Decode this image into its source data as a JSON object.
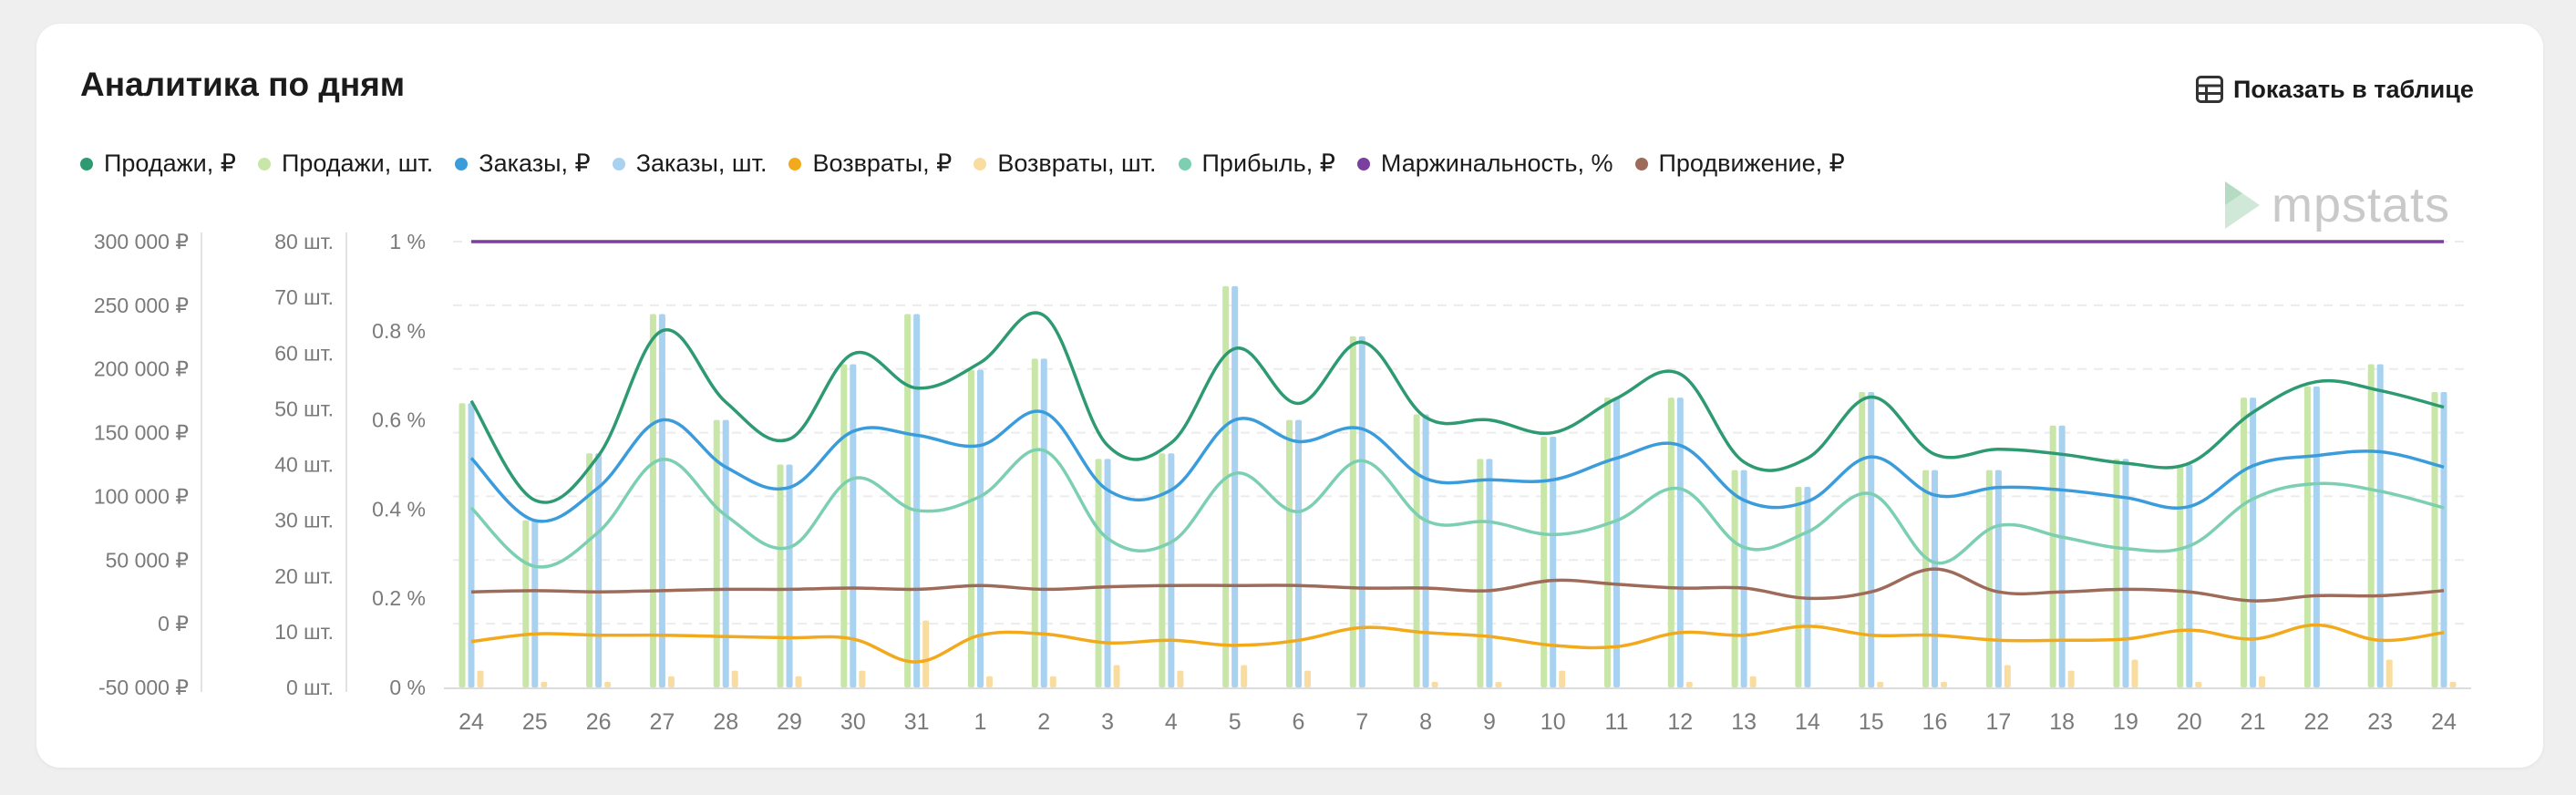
{
  "header": {
    "title": "Аналитика по дням",
    "table_button_label": "Показать в таблице",
    "table_icon": "table-icon"
  },
  "logo": {
    "text": "mpstats",
    "icon": "play-triangle-icon"
  },
  "colors": {
    "sales_rub": "#2e9a72",
    "sales_pcs": "#c8e6a8",
    "orders_rub": "#3b9cdb",
    "orders_pcs": "#a8d2f0",
    "returns_rub": "#f2a91c",
    "returns_pcs": "#f9dca0",
    "profit_rub": "#7ccfb0",
    "margin_pct": "#7b3fa0",
    "promo_rub": "#9e6b5a"
  },
  "chart_data": {
    "type": "bar",
    "x": [
      "24",
      "25",
      "26",
      "27",
      "28",
      "29",
      "30",
      "31",
      "1",
      "2",
      "3",
      "4",
      "5",
      "6",
      "7",
      "8",
      "9",
      "10",
      "11",
      "12",
      "13",
      "14",
      "15",
      "16",
      "17",
      "18",
      "19",
      "20",
      "21",
      "22",
      "23",
      "24"
    ],
    "axes": {
      "rub": {
        "ticks": [
          "300 000 ₽",
          "250 000 ₽",
          "200 000 ₽",
          "150 000 ₽",
          "100 000 ₽",
          "50 000 ₽",
          "0 ₽",
          "-50 000 ₽"
        ],
        "range": [
          -50000,
          300000
        ]
      },
      "pcs": {
        "ticks": [
          "80 шт.",
          "70 шт.",
          "60 шт.",
          "50 шт.",
          "40 шт.",
          "30 шт.",
          "20 шт.",
          "10 шт.",
          "0 шт."
        ],
        "range": [
          0,
          80
        ]
      },
      "pct": {
        "ticks": [
          "1 %",
          "0.8 %",
          "0.6 %",
          "0.4 %",
          "0.2 %",
          "0 %"
        ],
        "range": [
          0,
          1
        ]
      }
    },
    "grid": true,
    "legend_position": "top-left",
    "series": [
      {
        "name": "Продажи, ₽",
        "key": "sales_rub",
        "kind": "line",
        "axis": "rub",
        "values": [
          175000,
          97000,
          132000,
          230000,
          174000,
          145000,
          212000,
          185000,
          205000,
          242000,
          140000,
          142000,
          216000,
          173000,
          221000,
          162000,
          160000,
          150000,
          177000,
          196000,
          127000,
          130000,
          178000,
          133000,
          137000,
          133000,
          126000,
          126000,
          166000,
          190000,
          183000,
          170000
        ]
      },
      {
        "name": "Продажи, шт.",
        "key": "sales_pcs",
        "kind": "bar",
        "axis": "pcs",
        "values": [
          51,
          30,
          42,
          67,
          48,
          40,
          58,
          67,
          57,
          59,
          41,
          42,
          72,
          48,
          63,
          49,
          41,
          45,
          52,
          52,
          39,
          36,
          53,
          39,
          39,
          47,
          41,
          40,
          52,
          54,
          58,
          53
        ]
      },
      {
        "name": "Заказы, ₽",
        "key": "orders_rub",
        "kind": "line",
        "axis": "rub",
        "values": [
          130000,
          81000,
          107000,
          160000,
          123000,
          107000,
          151000,
          148000,
          140000,
          166000,
          105000,
          105000,
          160000,
          143000,
          153000,
          114000,
          113000,
          113000,
          130000,
          140000,
          97000,
          96000,
          131000,
          101000,
          107000,
          105000,
          99000,
          92000,
          124000,
          132000,
          135000,
          123000
        ]
      },
      {
        "name": "Заказы, шт.",
        "key": "orders_pcs",
        "kind": "bar",
        "axis": "pcs",
        "values": [
          51,
          30,
          42,
          67,
          48,
          40,
          58,
          67,
          57,
          59,
          41,
          42,
          72,
          48,
          63,
          49,
          41,
          45,
          52,
          52,
          39,
          36,
          53,
          39,
          39,
          47,
          41,
          40,
          52,
          54,
          58,
          53
        ]
      },
      {
        "name": "Возвраты, ₽",
        "key": "returns_rub",
        "kind": "line",
        "axis": "rub",
        "values": [
          -14000,
          -8000,
          -9000,
          -9000,
          -10000,
          -11000,
          -12000,
          -30000,
          -9000,
          -8000,
          -15000,
          -13000,
          -17000,
          -13000,
          -3000,
          -7000,
          -10000,
          -17000,
          -18000,
          -7000,
          -9000,
          -2000,
          -9000,
          -9000,
          -13000,
          -13000,
          -12000,
          -5000,
          -12000,
          -1000,
          -13000,
          -7000
        ]
      },
      {
        "name": "Возвраты, шт.",
        "key": "returns_pcs",
        "kind": "bar",
        "axis": "pcs",
        "values": [
          3,
          1,
          1,
          2,
          3,
          2,
          3,
          12,
          2,
          2,
          4,
          3,
          4,
          3,
          0,
          1,
          1,
          3,
          0,
          1,
          2,
          0,
          1,
          1,
          4,
          3,
          5,
          1,
          2,
          0,
          5,
          1
        ]
      },
      {
        "name": "Прибыль, ₽",
        "key": "profit_rub",
        "kind": "line",
        "axis": "rub",
        "values": [
          91000,
          45000,
          72000,
          129000,
          85000,
          60000,
          114000,
          89000,
          100000,
          136000,
          67000,
          64000,
          118000,
          88000,
          128000,
          81000,
          80000,
          70000,
          81000,
          106000,
          60000,
          72000,
          102000,
          48000,
          77000,
          68000,
          59000,
          61000,
          98000,
          110000,
          104000,
          91000
        ]
      },
      {
        "name": "Маржинальность, %",
        "key": "margin_pct",
        "kind": "line",
        "axis": "pct",
        "values": [
          1,
          1,
          1,
          1,
          1,
          1,
          1,
          1,
          1,
          1,
          1,
          1,
          1,
          1,
          1,
          1,
          1,
          1,
          1,
          1,
          1,
          1,
          1,
          1,
          1,
          1,
          1,
          1,
          1,
          1,
          1,
          1
        ]
      },
      {
        "name": "Продвижение, ₽",
        "key": "promo_rub",
        "kind": "line",
        "axis": "rub",
        "values": [
          25000,
          26000,
          25000,
          26000,
          27000,
          27000,
          28000,
          27000,
          30000,
          27000,
          29000,
          30000,
          30000,
          30000,
          28000,
          28000,
          26000,
          34000,
          31000,
          28000,
          28000,
          20000,
          25000,
          43000,
          25000,
          25000,
          27000,
          25000,
          18000,
          22000,
          22000,
          26000
        ]
      }
    ]
  }
}
